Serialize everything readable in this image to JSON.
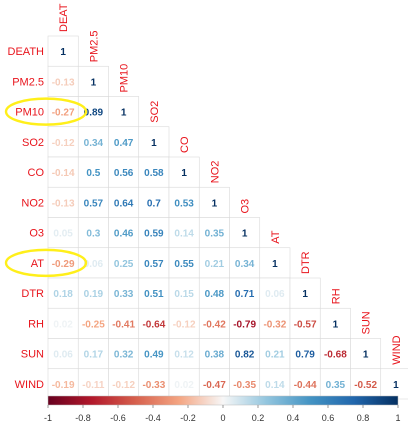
{
  "chart_data": {
    "type": "heatmap",
    "variables": [
      "DEATH",
      "PM2.5",
      "PM10",
      "SO2",
      "CO",
      "NO2",
      "O3",
      "AT",
      "DTR",
      "RH",
      "SUN",
      "WIND"
    ],
    "top_labels": [
      "DEAT",
      "PM2.5",
      "PM10",
      "SO2",
      "CO",
      "NO2",
      "O3",
      "AT",
      "DTR",
      "RH",
      "SUN",
      "WIND"
    ],
    "matrix": [
      [
        "1"
      ],
      [
        "-0.13",
        "1"
      ],
      [
        "-0.27",
        "0.89",
        "1"
      ],
      [
        "-0.12",
        "0.34",
        "0.47",
        "1"
      ],
      [
        "-0.14",
        "0.5",
        "0.56",
        "0.58",
        "1"
      ],
      [
        "-0.13",
        "0.57",
        "0.64",
        "0.7",
        "0.53",
        "1"
      ],
      [
        "0.05",
        "0.3",
        "0.46",
        "0.59",
        "0.14",
        "0.35",
        "1"
      ],
      [
        "-0.29",
        "0.06",
        "0.25",
        "0.57",
        "0.55",
        "0.21",
        "0.34",
        "1"
      ],
      [
        "0.18",
        "0.19",
        "0.33",
        "0.51",
        "0.15",
        "0.48",
        "0.71",
        "0.06",
        "1"
      ],
      [
        "0.02",
        "-0.25",
        "-0.41",
        "-0.64",
        "-0.12",
        "-0.42",
        "-0.79",
        "-0.32",
        "-0.57",
        "1"
      ],
      [
        "0.06",
        "0.17",
        "0.32",
        "0.49",
        "0.12",
        "0.38",
        "0.82",
        "0.21",
        "0.79",
        "-0.68",
        "1"
      ],
      [
        "-0.19",
        "-0.11",
        "-0.12",
        "-0.33",
        "0.02",
        "-0.47",
        "-0.35",
        "0.14",
        "-0.44",
        "0.35",
        "-0.52",
        "1"
      ]
    ],
    "colorbar": {
      "range": [
        -1,
        1
      ],
      "ticks": [
        "-1",
        "-0.8",
        "-0.6",
        "-0.4",
        "-0.2",
        "0",
        "0.2",
        "0.4",
        "0.6",
        "0.8",
        "1"
      ],
      "colors": {
        "neg": "#67001f",
        "mid": "#f7f7f7",
        "pos": "#053061"
      }
    },
    "label_color": "#e8141c",
    "highlight_color": "#ffef1a",
    "highlighted": [
      "PM10",
      "AT"
    ],
    "grid": true
  }
}
